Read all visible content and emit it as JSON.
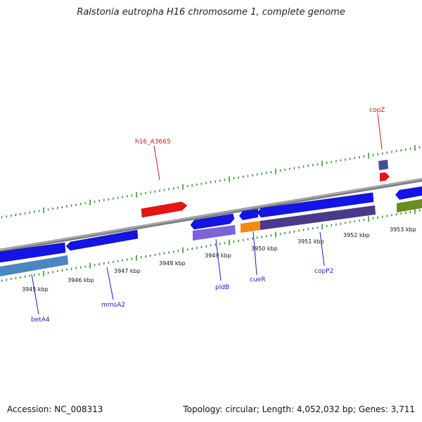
{
  "title": "Ralstonia eutropha H16 chromosome 1, complete genome",
  "footer": {
    "accession": "Accession: NC_008313",
    "summary": "Topology: circular; Length: 4,052,032 bp; Genes: 3,711"
  },
  "colors": {
    "backbone": "#8a8a8a",
    "tick": "#2a8a2a",
    "gene_label_blue": "#1a1ac8",
    "gene_label_red": "#c81a1a"
  },
  "scale_labels": [
    "3945 kbp",
    "3946 kbp",
    "3947 kbp",
    "3948 kbp",
    "3949 kbp",
    "3950 kbp",
    "3951 kbp",
    "3952 kbp",
    "3953 kbp"
  ],
  "gene_labels": [
    {
      "name": "betA4",
      "color": "#1a1ac8"
    },
    {
      "name": "mmsA2",
      "color": "#1a1ac8"
    },
    {
      "name": "pldB",
      "color": "#1a1ac8"
    },
    {
      "name": "cueR",
      "color": "#1a1ac8"
    },
    {
      "name": "copP2",
      "color": "#1a1ac8"
    },
    {
      "name": "h16_A3665",
      "color": "#c81a1a"
    },
    {
      "name": "copZ",
      "color": "#c81a1a"
    }
  ]
}
